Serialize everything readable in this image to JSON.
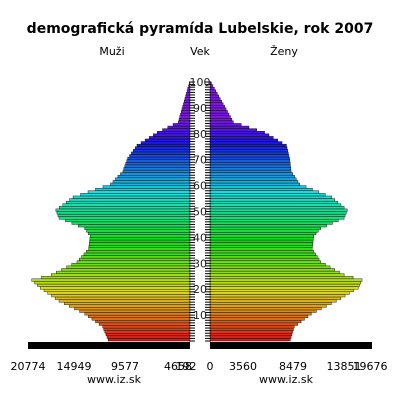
{
  "chart_data": {
    "type": "bar",
    "orientation": "horizontal-population-pyramid",
    "title": "demografická pyramída Lubelskie, rok 2007",
    "left_label": "Muži",
    "center_label": "Vek",
    "right_label": "Ženy",
    "age_labels": [
      "10",
      "20",
      "30",
      "40",
      "50",
      "60",
      "70",
      "80",
      "90",
      "100"
    ],
    "male_ticks": [
      "20774",
      "14949",
      "9577",
      "4658",
      "192"
    ],
    "female_ticks": [
      "0",
      "3560",
      "8479",
      "13851",
      "19676"
    ],
    "watermark_left": "www.iz.sk",
    "watermark_right": "www.iz.sk",
    "bottom_bar_color": "#000000",
    "age_range": [
      0,
      100
    ],
    "male_max": 20774,
    "female_max": 19676,
    "males": [
      {
        "age": 0,
        "value": 10500
      },
      {
        "age": 5,
        "value": 11200
      },
      {
        "age": 10,
        "value": 13500
      },
      {
        "age": 15,
        "value": 16800
      },
      {
        "age": 20,
        "value": 19200
      },
      {
        "age": 23,
        "value": 20300
      },
      {
        "age": 25,
        "value": 17800
      },
      {
        "age": 30,
        "value": 14500
      },
      {
        "age": 35,
        "value": 13000
      },
      {
        "age": 40,
        "value": 12800
      },
      {
        "age": 43,
        "value": 13500
      },
      {
        "age": 47,
        "value": 16800
      },
      {
        "age": 50,
        "value": 17200
      },
      {
        "age": 55,
        "value": 15000
      },
      {
        "age": 60,
        "value": 10200
      },
      {
        "age": 65,
        "value": 8600
      },
      {
        "age": 70,
        "value": 8000
      },
      {
        "age": 75,
        "value": 6800
      },
      {
        "age": 80,
        "value": 4200
      },
      {
        "age": 84,
        "value": 1500
      },
      {
        "age": 100,
        "value": 0
      }
    ],
    "females": [
      {
        "age": 0,
        "value": 10300
      },
      {
        "age": 5,
        "value": 10800
      },
      {
        "age": 10,
        "value": 13000
      },
      {
        "age": 15,
        "value": 16200
      },
      {
        "age": 20,
        "value": 19000
      },
      {
        "age": 23,
        "value": 19500
      },
      {
        "age": 25,
        "value": 17200
      },
      {
        "age": 30,
        "value": 14200
      },
      {
        "age": 35,
        "value": 13100
      },
      {
        "age": 40,
        "value": 13300
      },
      {
        "age": 43,
        "value": 14200
      },
      {
        "age": 47,
        "value": 17200
      },
      {
        "age": 50,
        "value": 17600
      },
      {
        "age": 55,
        "value": 15600
      },
      {
        "age": 60,
        "value": 11500
      },
      {
        "age": 65,
        "value": 10400
      },
      {
        "age": 70,
        "value": 10200
      },
      {
        "age": 75,
        "value": 9800
      },
      {
        "age": 80,
        "value": 7000
      },
      {
        "age": 84,
        "value": 3000
      },
      {
        "age": 100,
        "value": 0
      }
    ]
  }
}
